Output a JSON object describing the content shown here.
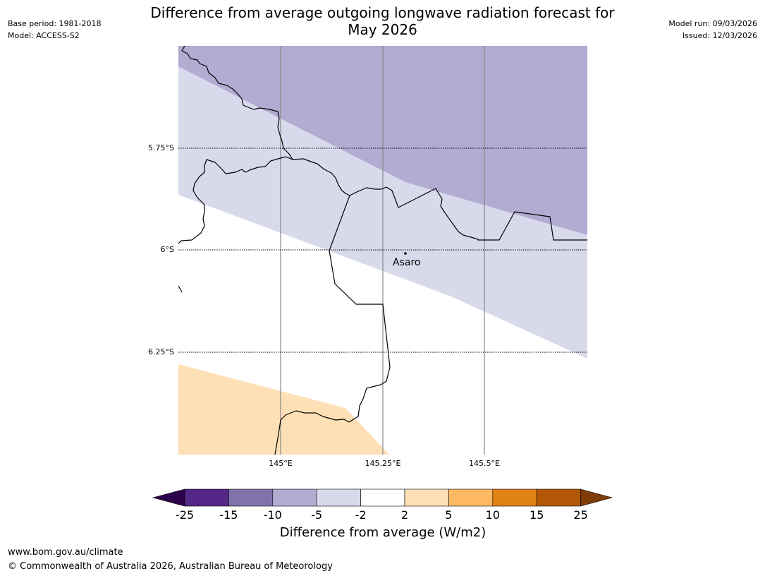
{
  "header": {
    "base_period": "Base period: 1981-2018",
    "model": "Model: ACCESS-S2",
    "model_run": "Model run: 09/03/2026",
    "issued": "Issued: 12/03/2026",
    "title_line1": "Difference from average outgoing longwave radiation forecast for",
    "title_line2": "May 2026"
  },
  "map": {
    "lat_labels": [
      "5.75°S",
      "6°S",
      "6.25°S"
    ],
    "lon_labels": [
      "145°E",
      "145.25°E",
      "145.5°E"
    ],
    "place": "Asaro",
    "place_lat": -6.01,
    "place_lon": 145.305
  },
  "colorbar": {
    "title": "Difference from average (W/m2)",
    "ticks": [
      "-25",
      "-15",
      "-10",
      "-5",
      "-2",
      "2",
      "5",
      "10",
      "15",
      "25"
    ],
    "colors": {
      "lt_minus25": "#2d004b",
      "m25_m15": "#542788",
      "m15_m10": "#8073ac",
      "m10_m5": "#b2abd2",
      "m5_m2": "#d8daeb",
      "m2_2": "#ffffff",
      "p2_p5": "#fee0b6",
      "p5_p10": "#fdb863",
      "p10_p15": "#e08214",
      "p15_p25": "#b35806",
      "gt_25": "#7f3b08"
    }
  },
  "footer": {
    "url": "www.bom.gov.au/climate",
    "copyright": "© Commonwealth of Australia 2026, Australian Bureau of Meteorology"
  }
}
